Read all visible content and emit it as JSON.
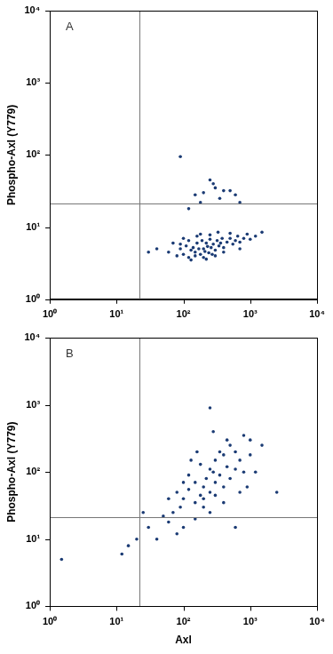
{
  "chart_data": [
    {
      "type": "scatter",
      "annotation": "A",
      "color": "#1b3b74",
      "log": true,
      "grid": false,
      "y_label": "Phospho-Axl (Y779)",
      "xlim": [
        1,
        10000
      ],
      "ylim": [
        1,
        10000
      ],
      "xticks": [
        {
          "value": 1,
          "label": "10⁰"
        },
        {
          "value": 10,
          "label": "10¹"
        },
        {
          "value": 100,
          "label": "10²"
        },
        {
          "value": 1000,
          "label": "10³"
        },
        {
          "value": 10000,
          "label": "10⁴"
        }
      ],
      "yticks": [
        {
          "value": 1,
          "label": "10⁰"
        },
        {
          "value": 10,
          "label": "10¹"
        },
        {
          "value": 100,
          "label": "10²"
        },
        {
          "value": 1000,
          "label": "10³"
        },
        {
          "value": 10000,
          "label": "10⁴"
        }
      ],
      "quadrant_lines": {
        "x": 22,
        "y": 21
      },
      "x": [
        60,
        80,
        90,
        100,
        110,
        120,
        130,
        140,
        150,
        160,
        170,
        180,
        190,
        200,
        210,
        220,
        230,
        240,
        250,
        260,
        280,
        300,
        320,
        340,
        360,
        380,
        400,
        450,
        500,
        550,
        600,
        650,
        700,
        800,
        900,
        1000,
        1200,
        1500,
        70,
        100,
        130,
        160,
        200,
        250,
        300,
        400,
        500,
        700,
        90,
        120,
        150,
        180,
        220,
        270,
        330,
        40,
        30,
        90,
        250,
        300,
        400,
        150,
        200,
        350,
        500,
        180,
        280,
        600,
        120,
        700
      ],
      "values": [
        4.5,
        4,
        5,
        4.2,
        5.5,
        3.8,
        4.8,
        5.2,
        4.5,
        6,
        5,
        4.2,
        6.5,
        5,
        4.6,
        6,
        5.4,
        4.4,
        6.8,
        5.2,
        5.8,
        4.8,
        6.5,
        5.5,
        6,
        7,
        5.2,
        6.2,
        7,
        5.8,
        6.5,
        7.5,
        6.2,
        7,
        8,
        6.8,
        7.5,
        8.5,
        6,
        7,
        3.5,
        7.5,
        3.8,
        7.8,
        4,
        4.5,
        8.2,
        5,
        5.8,
        6.5,
        4,
        8,
        3.6,
        4.2,
        8.5,
        5,
        4.5,
        95,
        45,
        35,
        32,
        28,
        30,
        25,
        32,
        22,
        40,
        28,
        18,
        22
      ]
    },
    {
      "type": "scatter",
      "annotation": "B",
      "color": "#1b3b74",
      "log": true,
      "grid": false,
      "x_label": "Axl",
      "y_label": "Phospho-Axl (Y779)",
      "xlim": [
        1,
        10000
      ],
      "ylim": [
        1,
        10000
      ],
      "xticks": [
        {
          "value": 1,
          "label": "10⁰"
        },
        {
          "value": 10,
          "label": "10¹"
        },
        {
          "value": 100,
          "label": "10²"
        },
        {
          "value": 1000,
          "label": "10³"
        },
        {
          "value": 10000,
          "label": "10⁴"
        }
      ],
      "yticks": [
        {
          "value": 1,
          "label": "10⁰"
        },
        {
          "value": 10,
          "label": "10¹"
        },
        {
          "value": 100,
          "label": "10²"
        },
        {
          "value": 1000,
          "label": "10³"
        },
        {
          "value": 10000,
          "label": "10⁴"
        }
      ],
      "quadrant_lines": {
        "x": 22,
        "y": 21
      },
      "x": [
        100,
        120,
        150,
        180,
        200,
        220,
        250,
        280,
        300,
        350,
        400,
        450,
        500,
        600,
        700,
        800,
        150,
        200,
        250,
        300,
        120,
        100,
        90,
        80,
        70,
        60,
        180,
        350,
        400,
        500,
        600,
        1000,
        1200,
        900,
        700,
        400,
        250,
        150,
        100,
        80,
        60,
        50,
        200,
        300,
        450,
        280,
        160,
        130,
        1500,
        250,
        2500,
        600,
        25,
        20,
        15,
        12,
        1.5,
        40,
        30,
        800,
        1000
      ],
      "values": [
        40,
        55,
        70,
        45,
        60,
        80,
        50,
        100,
        70,
        90,
        60,
        120,
        80,
        110,
        150,
        100,
        35,
        30,
        110,
        150,
        90,
        70,
        30,
        50,
        25,
        40,
        130,
        200,
        180,
        250,
        200,
        180,
        100,
        60,
        50,
        35,
        25,
        20,
        15,
        12,
        18,
        22,
        40,
        45,
        300,
        400,
        200,
        150,
        250,
        900,
        50,
        15,
        25,
        10,
        8,
        6,
        5,
        10,
        15,
        350,
        300
      ]
    }
  ]
}
